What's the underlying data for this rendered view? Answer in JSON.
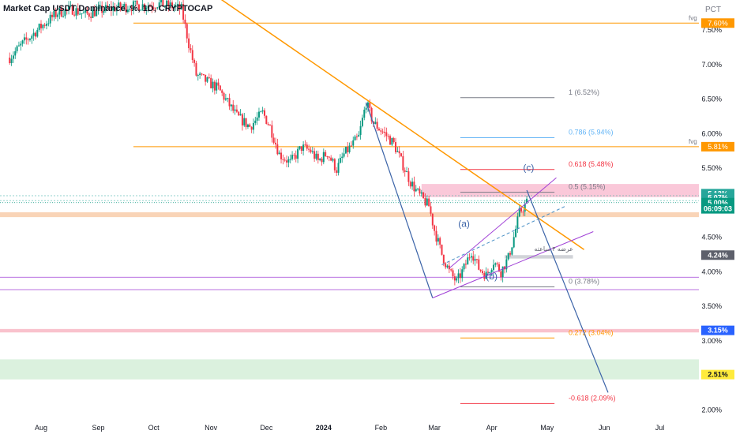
{
  "chart_data": {
    "type": "candlestick",
    "title": "Market Cap USDT Dominance, %, 1D, CRYPTOCAP",
    "axis_unit_label": "PCT",
    "ylim": [
      1.98,
      7.88
    ],
    "price_ticks": [
      {
        "v": 7.5,
        "label": "7.50%"
      },
      {
        "v": 7.0,
        "label": "7.00%"
      },
      {
        "v": 6.5,
        "label": "6.50%"
      },
      {
        "v": 6.0,
        "label": "6.00%"
      },
      {
        "v": 5.5,
        "label": "5.50%"
      },
      {
        "v": 5.0,
        "label": "5.00%"
      },
      {
        "v": 4.5,
        "label": "4.50%"
      },
      {
        "v": 4.0,
        "label": "4.00%"
      },
      {
        "v": 3.5,
        "label": "3.50%"
      },
      {
        "v": 3.0,
        "label": "3.00%"
      },
      {
        "v": 2.5,
        "label": "2.50%"
      },
      {
        "v": 2.0,
        "label": "2.00%"
      }
    ],
    "time_ticks": [
      {
        "t": "2023-08-01",
        "label": "Aug",
        "bold": false
      },
      {
        "t": "2023-09-01",
        "label": "Sep",
        "bold": false
      },
      {
        "t": "2023-10-01",
        "label": "Oct",
        "bold": false
      },
      {
        "t": "2023-11-01",
        "label": "Nov",
        "bold": false
      },
      {
        "t": "2023-12-01",
        "label": "Dec",
        "bold": false
      },
      {
        "t": "2024-01-01",
        "label": "2024",
        "bold": true
      },
      {
        "t": "2024-02-01",
        "label": "Feb",
        "bold": false
      },
      {
        "t": "2024-03-01",
        "label": "Mar",
        "bold": false
      },
      {
        "t": "2024-04-01",
        "label": "Apr",
        "bold": false
      },
      {
        "t": "2024-05-01",
        "label": "May",
        "bold": false
      },
      {
        "t": "2024-06-01",
        "label": "Jun",
        "bold": false
      },
      {
        "t": "2024-07-01",
        "label": "Jul",
        "bold": false
      }
    ],
    "price_path": [
      [
        "2023-07-15",
        7.1
      ],
      [
        "2023-07-22",
        7.3
      ],
      [
        "2023-08-01",
        7.55
      ],
      [
        "2023-08-10",
        7.75
      ],
      [
        "2023-08-18",
        7.8
      ],
      [
        "2023-08-25",
        7.72
      ],
      [
        "2023-09-01",
        7.78
      ],
      [
        "2023-09-10",
        7.82
      ],
      [
        "2023-09-20",
        7.85
      ],
      [
        "2023-09-28",
        7.86
      ],
      [
        "2023-10-03",
        7.88
      ],
      [
        "2023-10-10",
        7.85
      ],
      [
        "2023-10-16",
        7.8
      ],
      [
        "2023-10-20",
        7.3
      ],
      [
        "2023-10-24",
        6.85
      ],
      [
        "2023-10-30",
        6.75
      ],
      [
        "2023-11-05",
        6.65
      ],
      [
        "2023-11-10",
        6.45
      ],
      [
        "2023-11-15",
        6.25
      ],
      [
        "2023-11-22",
        6.1
      ],
      [
        "2023-11-29",
        6.3
      ],
      [
        "2023-12-03",
        6.1
      ],
      [
        "2023-12-08",
        5.7
      ],
      [
        "2023-12-14",
        5.58
      ],
      [
        "2023-12-20",
        5.8
      ],
      [
        "2023-12-25",
        5.75
      ],
      [
        "2023-12-29",
        5.6
      ],
      [
        "2024-01-03",
        5.72
      ],
      [
        "2024-01-08",
        5.48
      ],
      [
        "2024-01-12",
        5.7
      ],
      [
        "2024-01-16",
        5.82
      ],
      [
        "2024-01-20",
        5.95
      ],
      [
        "2024-01-24",
        6.45
      ],
      [
        "2024-01-28",
        6.15
      ],
      [
        "2024-02-03",
        6.0
      ],
      [
        "2024-02-08",
        5.85
      ],
      [
        "2024-02-12",
        5.6
      ],
      [
        "2024-02-17",
        5.3
      ],
      [
        "2024-02-22",
        5.1
      ],
      [
        "2024-02-27",
        4.95
      ],
      [
        "2024-03-01",
        4.6
      ],
      [
        "2024-03-05",
        4.25
      ],
      [
        "2024-03-09",
        4.0
      ],
      [
        "2024-03-13",
        3.85
      ],
      [
        "2024-03-17",
        4.05
      ],
      [
        "2024-03-21",
        4.3
      ],
      [
        "2024-03-25",
        4.05
      ],
      [
        "2024-03-29",
        3.95
      ],
      [
        "2024-04-02",
        4.15
      ],
      [
        "2024-04-06",
        4.0
      ],
      [
        "2024-04-10",
        4.2
      ],
      [
        "2024-04-13",
        4.5
      ],
      [
        "2024-04-16",
        4.85
      ],
      [
        "2024-04-20",
        5.0
      ]
    ],
    "wave_labels": [
      {
        "text": "(a)",
        "t": "2024-03-17",
        "v": 4.65
      },
      {
        "text": "(b)",
        "t": "2024-04-01",
        "v": 3.89
      },
      {
        "text": "(c)",
        "t": "2024-04-21",
        "v": 5.46
      }
    ],
    "fib_levels": [
      {
        "label": "1 (6.52%)",
        "v": 6.52,
        "color": "#787b86"
      },
      {
        "label": "0.786 (5.94%)",
        "v": 5.94,
        "color": "#64b5f6"
      },
      {
        "label": "0.618 (5.48%)",
        "v": 5.48,
        "color": "#f23645"
      },
      {
        "label": "0.5 (5.15%)",
        "v": 5.15,
        "color": "#787b86"
      },
      {
        "label": "0 (3.78%)",
        "v": 3.78,
        "color": "#787b86"
      },
      {
        "label": "0.272 (3.04%)",
        "v": 3.04,
        "color": "#ff9800"
      },
      {
        "label": "-0.618 (2.09%)",
        "v": 2.09,
        "color": "#f23645"
      }
    ],
    "horizontal_levels": [
      {
        "v": 7.6,
        "color": "#ff9800",
        "note": "fvg",
        "badge": "7.60%"
      },
      {
        "v": 5.81,
        "color": "#ff9800",
        "note": "fvg",
        "badge": "5.81%"
      }
    ],
    "price_badges": [
      {
        "text": "5.13%",
        "v": 5.13,
        "bg": "#26a69a"
      },
      {
        "text": "5.07%",
        "v": 5.07,
        "bg": "#26a69a"
      },
      {
        "text": "5.00%",
        "v": 5.0,
        "bg": "#089981"
      },
      {
        "text": "06:09:03",
        "v": 4.91,
        "bg": "#089981"
      },
      {
        "text": "4.24%",
        "v": 4.24,
        "bg": "#5d606b"
      },
      {
        "text": "3.15%",
        "v": 3.15,
        "bg": "#2962ff"
      },
      {
        "text": "2.51%",
        "v": 2.51,
        "bg": "#ffeb3b"
      }
    ],
    "annotations": [
      {
        "text": "عرضه ۴ ساعته",
        "t": "2024-04-24",
        "v": 4.3
      }
    ],
    "colors": {
      "up": "#089981",
      "down": "#f23645",
      "orange": "#ff9800",
      "blue": "#3c64a8",
      "violet": "#a040d6"
    }
  }
}
